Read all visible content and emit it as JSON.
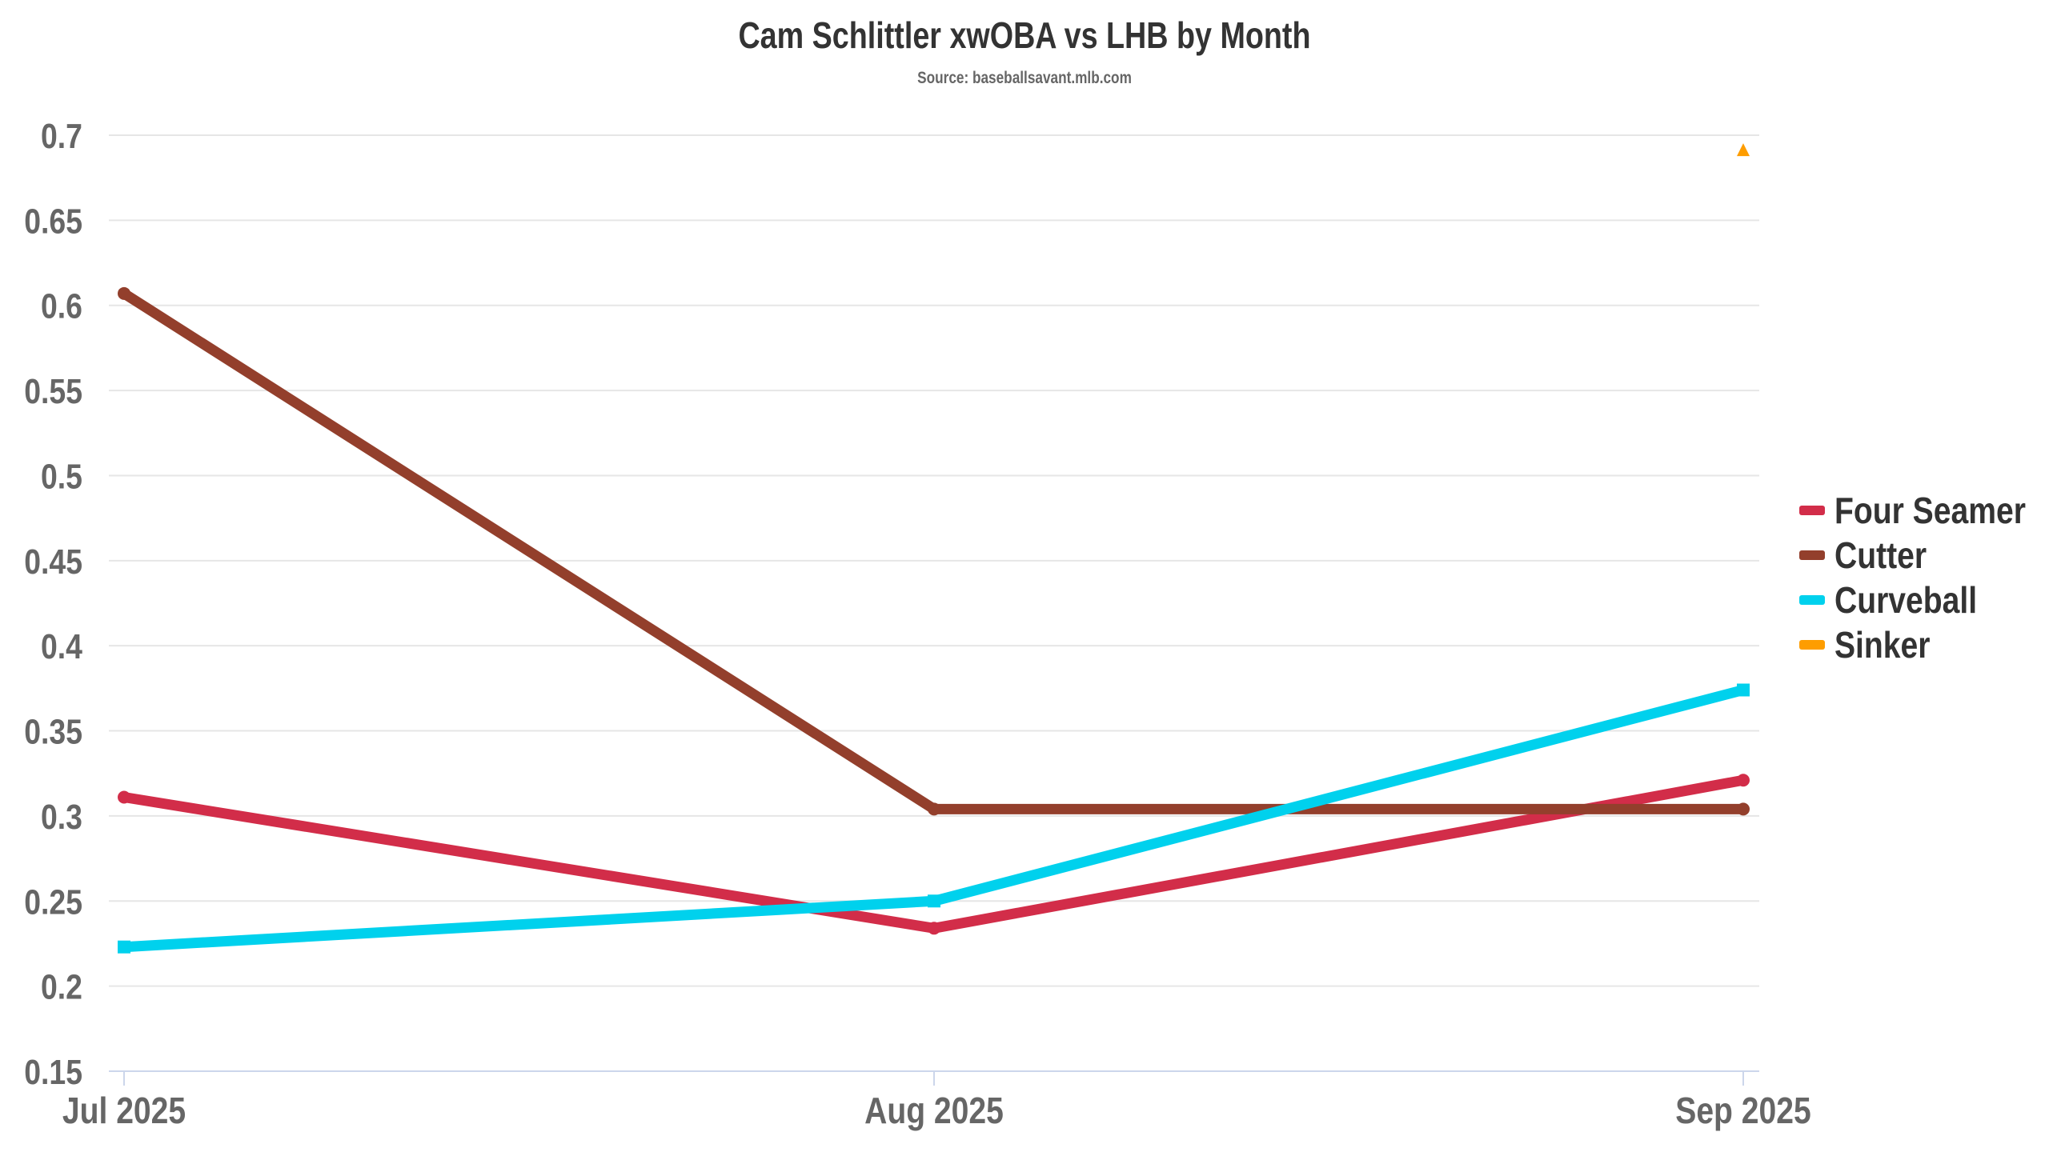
{
  "chart_data": {
    "type": "line",
    "title": "Cam Schlittler xwOBA vs LHB by Month",
    "subtitle": "Source: baseballsavant.mlb.com",
    "xlabel": "",
    "ylabel": "",
    "categories": [
      "Jul 2025",
      "Aug 2025",
      "Sep 2025"
    ],
    "ylim": [
      0.15,
      0.7
    ],
    "yticks": [
      0.15,
      0.2,
      0.25,
      0.3,
      0.35,
      0.4,
      0.45,
      0.5,
      0.55,
      0.6,
      0.65,
      0.7
    ],
    "ytick_labels": [
      "0.15",
      "0.2",
      "0.25",
      "0.3",
      "0.35",
      "0.4",
      "0.45",
      "0.5",
      "0.55",
      "0.6",
      "0.65",
      "0.7"
    ],
    "grid": true,
    "legend_position": "right",
    "series": [
      {
        "name": "Four Seamer",
        "color": "#d22d49",
        "marker": "circle",
        "values": [
          0.311,
          0.234,
          0.321
        ]
      },
      {
        "name": "Cutter",
        "color": "#933f2c",
        "marker": "circle",
        "values": [
          0.607,
          0.304,
          0.304
        ]
      },
      {
        "name": "Curveball",
        "color": "#00d1ed",
        "marker": "square",
        "values": [
          0.223,
          0.25,
          0.374
        ]
      },
      {
        "name": "Sinker",
        "color": "#fe9d00",
        "marker": "triangle",
        "values": [
          null,
          null,
          0.691
        ]
      }
    ]
  }
}
